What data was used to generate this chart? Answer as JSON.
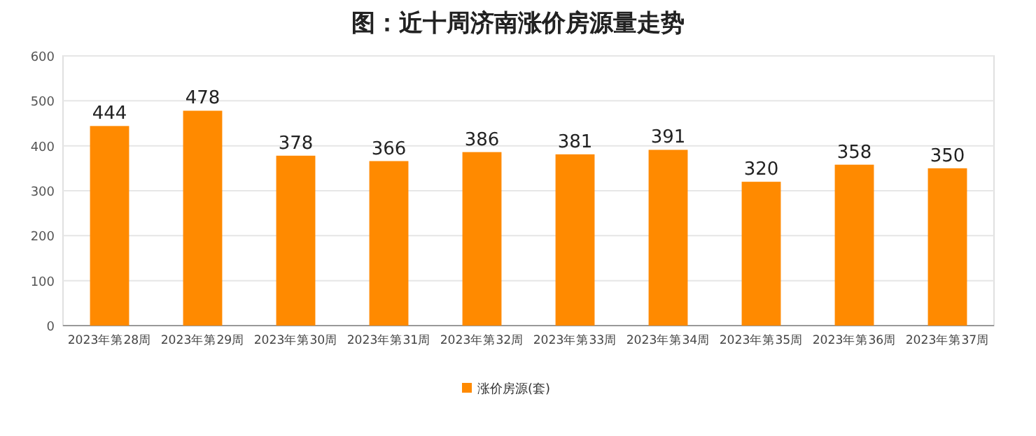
{
  "chart_data": {
    "type": "bar",
    "title": "图：近十周济南涨价房源量走势",
    "categories": [
      "2023年第28周",
      "2023年第29周",
      "2023年第30周",
      "2023年第31周",
      "2023年第32周",
      "2023年第33周",
      "2023年第34周",
      "2023年第35周",
      "2023年第36周",
      "2023年第37周"
    ],
    "series": [
      {
        "name": "涨价房源(套)",
        "color": "#ff8a00",
        "values": [
          444,
          478,
          378,
          366,
          386,
          381,
          391,
          320,
          358,
          350
        ]
      }
    ],
    "ylim": [
      0,
      600
    ],
    "yticks": [
      0,
      100,
      200,
      300,
      400,
      500,
      600
    ],
    "grid": "y",
    "data_labels": true,
    "legend": "bottom"
  }
}
